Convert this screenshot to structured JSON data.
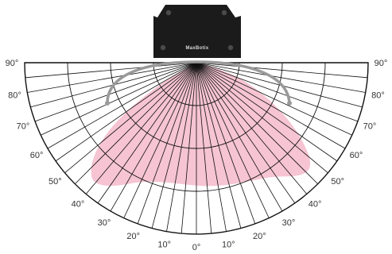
{
  "sensor": {
    "brand_label": "MaxBotix",
    "body_color": "#1b1b1b",
    "screw_color": "#4a4a4a",
    "bracket_color": "#9a9a9a"
  },
  "beam_pattern": {
    "fill_color": "#f6c4d2"
  },
  "protractor": {
    "line_color": "#111111",
    "angle_unit": "°",
    "radial_step_deg": 5,
    "ring_count": 3,
    "left_labels": [
      "90°",
      "80°",
      "70°",
      "60°",
      "50°",
      "40°",
      "30°",
      "20°",
      "10°"
    ],
    "center_label": "0°",
    "right_labels": [
      "10°",
      "20°",
      "30°",
      "40°",
      "50°",
      "60°",
      "70°",
      "80°",
      "90°"
    ]
  }
}
